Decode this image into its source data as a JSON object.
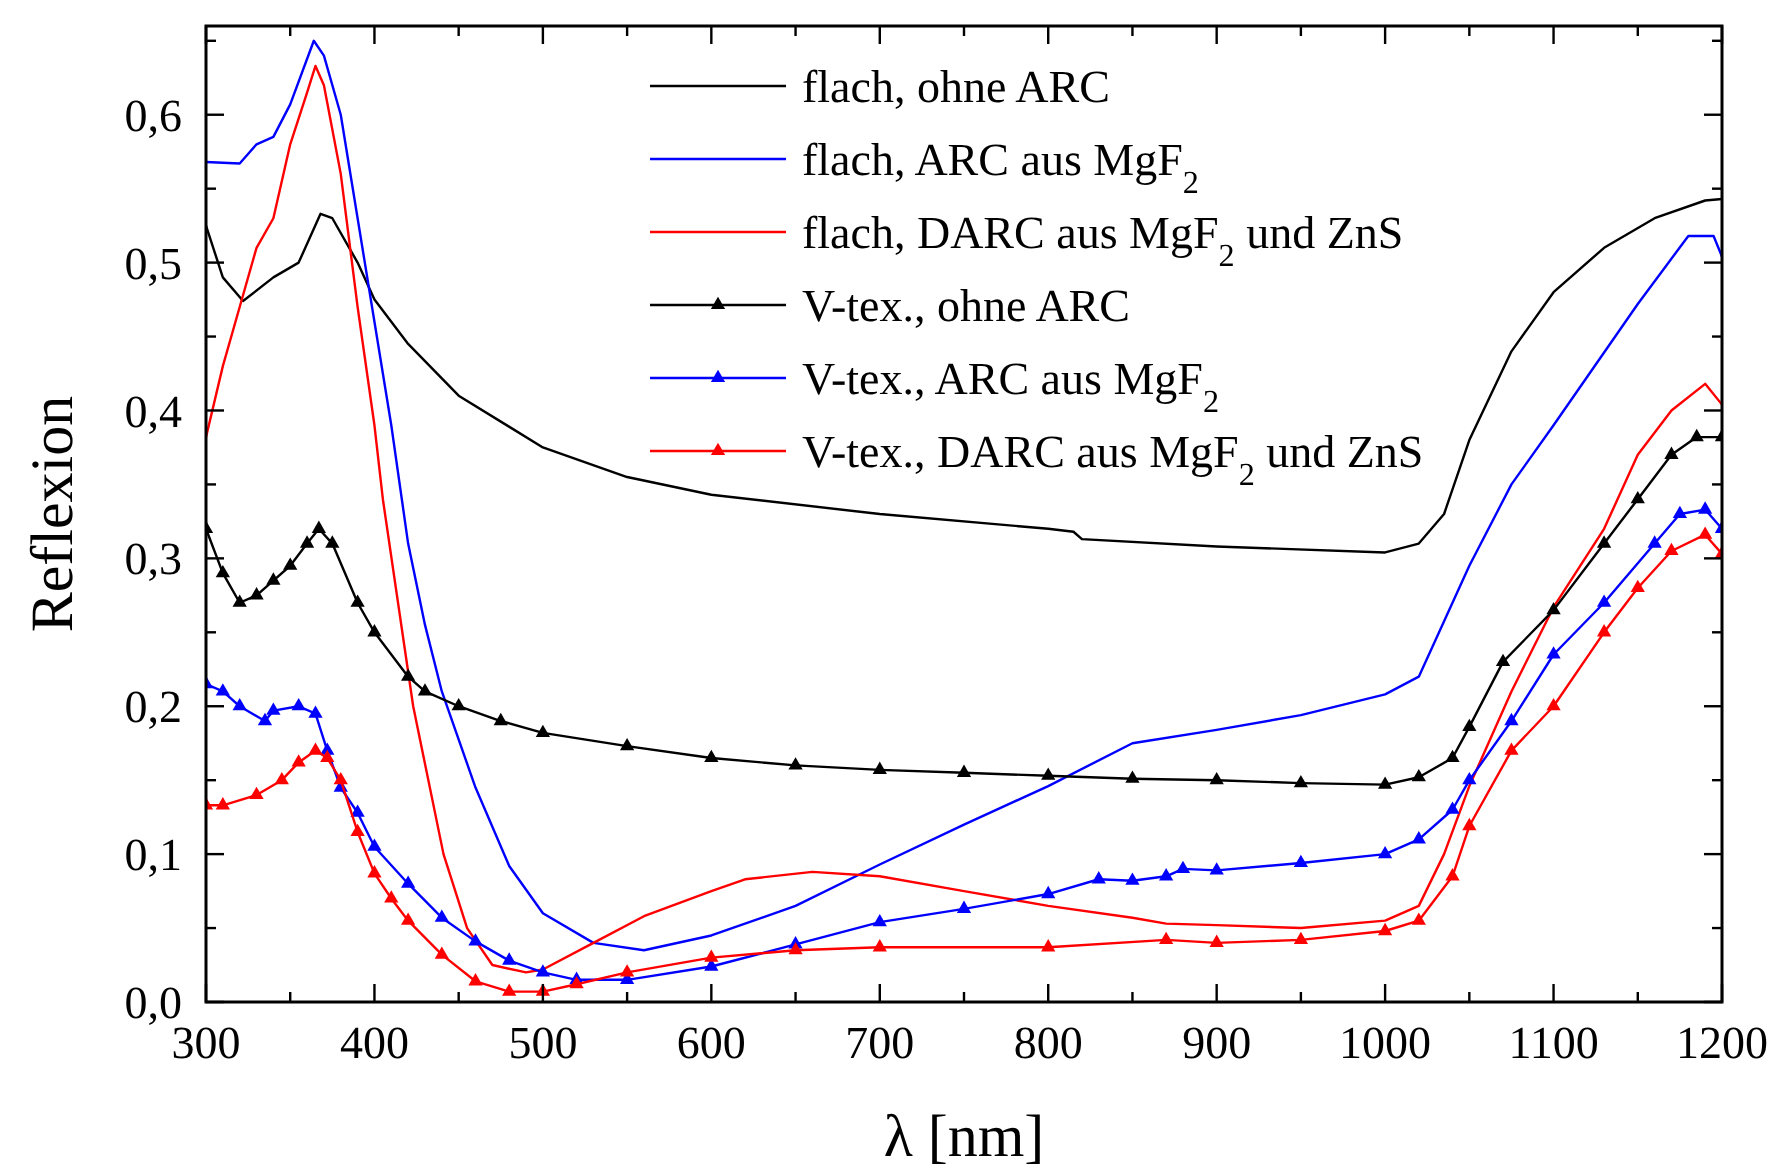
{
  "chart_data": {
    "type": "line",
    "xlabel": "λ [nm]",
    "ylabel": "Reflexion",
    "xlim": [
      300,
      1200
    ],
    "ylim": [
      0,
      0.66
    ],
    "xticks": [
      300,
      {
        "value": 350,
        "label": null
      },
      400,
      {
        "value": 450,
        "label": null
      },
      500,
      {
        "value": 550,
        "label": null
      },
      600,
      {
        "value": 650,
        "label": null
      },
      700,
      {
        "value": 750,
        "label": null
      },
      800,
      {
        "value": 850,
        "label": null
      },
      900,
      {
        "value": 950,
        "label": null
      },
      1000,
      {
        "value": 1050,
        "label": null
      },
      1100,
      {
        "value": 1150,
        "label": null
      },
      1200
    ],
    "yticks": [
      {
        "value": 0,
        "label": "0,0"
      },
      {
        "value": 0.05,
        "label": null
      },
      {
        "value": 0.1,
        "label": "0,1"
      },
      {
        "value": 0.15,
        "label": null
      },
      {
        "value": 0.2,
        "label": "0,2"
      },
      {
        "value": 0.25,
        "label": null
      },
      {
        "value": 0.3,
        "label": "0,3"
      },
      {
        "value": 0.35,
        "label": null
      },
      {
        "value": 0.4,
        "label": "0,4"
      },
      {
        "value": 0.45,
        "label": null
      },
      {
        "value": 0.5,
        "label": "0,5"
      },
      {
        "value": 0.55,
        "label": null
      },
      {
        "value": 0.6,
        "label": "0,6"
      },
      {
        "value": 0.65,
        "label": null
      }
    ],
    "grid": false,
    "legend": "top right",
    "series": [
      {
        "name": "flach, ohne ARC",
        "color": "#000000",
        "marker": "none",
        "x": [
          300,
          310,
          322,
          340,
          355,
          368,
          375,
          390,
          400,
          420,
          450,
          500,
          550,
          600,
          700,
          800,
          815,
          820,
          900,
          1000,
          1020,
          1035,
          1050,
          1075,
          1100,
          1130,
          1160,
          1190,
          1200
        ],
        "values": [
          0.525,
          0.49,
          0.474,
          0.49,
          0.5,
          0.533,
          0.53,
          0.5,
          0.475,
          0.445,
          0.41,
          0.375,
          0.355,
          0.343,
          0.33,
          0.32,
          0.318,
          0.313,
          0.308,
          0.304,
          0.31,
          0.33,
          0.38,
          0.44,
          0.48,
          0.51,
          0.53,
          0.542,
          0.543
        ]
      },
      {
        "name": "flach, ARC aus MgF$_{2}$",
        "color": "#0000ff",
        "marker": "none",
        "x": [
          300,
          320,
          330,
          340,
          350,
          364,
          370,
          380,
          390,
          400,
          410,
          420,
          430,
          440,
          460,
          480,
          500,
          530,
          560,
          600,
          650,
          700,
          750,
          800,
          850,
          900,
          950,
          1000,
          1020,
          1050,
          1075,
          1100,
          1150,
          1180,
          1195,
          1200
        ],
        "values": [
          0.568,
          0.567,
          0.58,
          0.585,
          0.607,
          0.65,
          0.64,
          0.6,
          0.53,
          0.46,
          0.39,
          0.31,
          0.255,
          0.21,
          0.145,
          0.092,
          0.06,
          0.04,
          0.035,
          0.045,
          0.065,
          0.093,
          0.12,
          0.146,
          0.175,
          0.184,
          0.194,
          0.208,
          0.22,
          0.295,
          0.35,
          0.39,
          0.472,
          0.518,
          0.518,
          0.504
        ]
      },
      {
        "name": "flach, DARC aus MgF$_{2}$ und ZnS",
        "color": "#ff0000",
        "marker": "none",
        "x": [
          300,
          310,
          320,
          330,
          340,
          350,
          360,
          365,
          370,
          380,
          390,
          400,
          405,
          423,
          441,
          455,
          470,
          490,
          500,
          530,
          560,
          600,
          620,
          660,
          700,
          750,
          800,
          850,
          870,
          900,
          950,
          1000,
          1020,
          1035,
          1050,
          1075,
          1100,
          1130,
          1150,
          1170,
          1190,
          1200
        ],
        "values": [
          0.382,
          0.43,
          0.47,
          0.51,
          0.53,
          0.58,
          0.615,
          0.633,
          0.62,
          0.56,
          0.47,
          0.39,
          0.34,
          0.2,
          0.1,
          0.05,
          0.025,
          0.02,
          0.022,
          0.04,
          0.058,
          0.075,
          0.083,
          0.088,
          0.085,
          0.075,
          0.065,
          0.057,
          0.053,
          0.052,
          0.05,
          0.055,
          0.065,
          0.1,
          0.146,
          0.21,
          0.267,
          0.32,
          0.37,
          0.4,
          0.418,
          0.404
        ]
      },
      {
        "name": "V-tex., ohne ARC",
        "color": "#000000",
        "marker": "triangle",
        "x": [
          300,
          310,
          320,
          330,
          340,
          350,
          360,
          367,
          375,
          390,
          400,
          420,
          430,
          450,
          475,
          500,
          550,
          600,
          650,
          700,
          750,
          800,
          850,
          900,
          950,
          1000,
          1020,
          1040,
          1050,
          1070,
          1100,
          1130,
          1150,
          1170,
          1185,
          1200
        ],
        "values": [
          0.32,
          0.29,
          0.27,
          0.275,
          0.285,
          0.295,
          0.31,
          0.32,
          0.31,
          0.27,
          0.25,
          0.22,
          0.21,
          0.2,
          0.19,
          0.182,
          0.173,
          0.165,
          0.16,
          0.157,
          0.155,
          0.153,
          0.151,
          0.15,
          0.148,
          0.147,
          0.152,
          0.165,
          0.186,
          0.23,
          0.265,
          0.31,
          0.34,
          0.37,
          0.382,
          0.382
        ]
      },
      {
        "name": "V-tex., ARC aus MgF$_{2}$",
        "color": "#0000ff",
        "marker": "triangle",
        "x": [
          300,
          310,
          320,
          335,
          340,
          355,
          365,
          372,
          380,
          390,
          400,
          420,
          440,
          460,
          480,
          500,
          520,
          550,
          600,
          650,
          700,
          750,
          800,
          830,
          850,
          870,
          880,
          900,
          950,
          1000,
          1020,
          1040,
          1050,
          1075,
          1100,
          1130,
          1160,
          1175,
          1190,
          1200
        ],
        "values": [
          0.215,
          0.21,
          0.2,
          0.19,
          0.197,
          0.2,
          0.195,
          0.17,
          0.145,
          0.128,
          0.105,
          0.08,
          0.057,
          0.041,
          0.028,
          0.02,
          0.015,
          0.015,
          0.024,
          0.039,
          0.054,
          0.063,
          0.073,
          0.083,
          0.082,
          0.085,
          0.09,
          0.089,
          0.094,
          0.1,
          0.11,
          0.13,
          0.15,
          0.19,
          0.235,
          0.27,
          0.31,
          0.33,
          0.333,
          0.32
        ]
      },
      {
        "name": "V-tex., DARC aus MgF$_{2}$ und ZnS",
        "color": "#ff0000",
        "marker": "triangle",
        "x": [
          300,
          310,
          330,
          345,
          355,
          365,
          372,
          380,
          390,
          400,
          410,
          420,
          440,
          460,
          480,
          500,
          520,
          550,
          600,
          650,
          700,
          800,
          870,
          900,
          950,
          1000,
          1020,
          1040,
          1050,
          1075,
          1100,
          1130,
          1150,
          1170,
          1190,
          1200
        ],
        "values": [
          0.133,
          0.133,
          0.14,
          0.15,
          0.162,
          0.17,
          0.165,
          0.15,
          0.115,
          0.087,
          0.07,
          0.055,
          0.032,
          0.014,
          0.007,
          0.007,
          0.012,
          0.02,
          0.03,
          0.035,
          0.037,
          0.037,
          0.042,
          0.04,
          0.042,
          0.048,
          0.055,
          0.085,
          0.119,
          0.17,
          0.2,
          0.25,
          0.28,
          0.305,
          0.316,
          0.303
        ]
      }
    ]
  }
}
